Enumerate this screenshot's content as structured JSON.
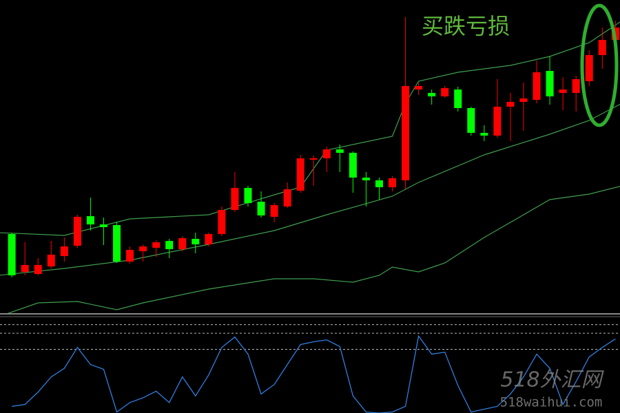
{
  "chart_data": {
    "type": "candlestick",
    "title": "买跌亏损",
    "watermark": "518外汇网",
    "watermark_url": "518waihui.com",
    "up_color": "#ff0000",
    "down_color": "#00ff00",
    "band_color": "#3f9f4f",
    "title_color": "#5fb83c",
    "xlim": [
      -0.9,
      46.35
    ],
    "ylim": [
      0,
      455
    ],
    "candles": {
      "open": [
        115,
        60,
        57,
        68,
        83,
        98,
        141,
        129,
        128,
        75,
        90,
        95,
        105,
        93,
        108,
        100,
        115,
        150,
        182,
        162,
        140,
        155,
        178,
        223,
        225,
        238,
        233,
        197,
        193,
        183,
        193,
        325,
        320,
        315,
        325,
        298,
        262,
        258,
        300,
        307,
        310,
        352,
        320,
        320,
        337,
        375,
        397
      ],
      "high": [
        117,
        103,
        80,
        105,
        110,
        143,
        168,
        139,
        133,
        97,
        100,
        106,
        108,
        112,
        117,
        117,
        155,
        205,
        185,
        177,
        160,
        190,
        230,
        229,
        242,
        245,
        235,
        205,
        197,
        199,
        430,
        335,
        325,
        330,
        329,
        300,
        273,
        340,
        320,
        335,
        367,
        373,
        343,
        345,
        382,
        415,
        425
      ],
      "low": [
        52,
        55,
        55,
        65,
        75,
        95,
        120,
        99,
        73,
        72,
        75,
        82,
        80,
        90,
        87,
        97,
        112,
        147,
        155,
        139,
        132,
        153,
        175,
        185,
        205,
        205,
        175,
        155,
        165,
        177,
        180,
        317,
        303,
        313,
        293,
        258,
        250,
        255,
        250,
        265,
        305,
        303,
        295,
        293,
        330,
        355,
        385
      ],
      "close": [
        55,
        70,
        70,
        85,
        97,
        140,
        129,
        125,
        75,
        92,
        97,
        103,
        93,
        109,
        100,
        115,
        150,
        182,
        160,
        142,
        157,
        180,
        225,
        225,
        238,
        233,
        197,
        193,
        183,
        196,
        330,
        330,
        315,
        327,
        298,
        262,
        258,
        300,
        307,
        312,
        350,
        315,
        325,
        340,
        375,
        397,
        415
      ]
    },
    "bands": [
      {
        "x": [
          -1,
          4,
          9,
          15,
          20,
          22,
          24,
          29,
          30,
          31,
          34,
          38,
          41,
          44,
          46.5
        ],
        "values": [
          117,
          113,
          137,
          143,
          172,
          183,
          237,
          257,
          305,
          337,
          350,
          360,
          373,
          393,
          425
        ]
      },
      {
        "x": [
          -1,
          4,
          9,
          15,
          20,
          24,
          29,
          31,
          36,
          41,
          44,
          46.5
        ],
        "values": [
          55,
          65,
          77,
          100,
          120,
          143,
          170,
          190,
          230,
          260,
          280,
          305
        ]
      },
      {
        "x": [
          -1,
          2,
          5,
          8,
          10,
          15,
          20,
          23,
          26,
          28,
          29,
          31,
          33,
          36,
          41,
          44,
          46.5
        ],
        "values": [
          -5,
          15,
          17,
          5,
          15,
          35,
          50,
          50,
          45,
          55,
          67,
          60,
          73,
          110,
          165,
          173,
          185
        ]
      }
    ],
    "oscillator": {
      "color": "#2f7fe0",
      "ylim": [
        0,
        100
      ],
      "levels": [
        93,
        84,
        67
      ],
      "values": [
        7,
        9,
        22,
        38,
        47,
        69,
        51,
        46,
        1,
        11,
        16,
        23,
        11,
        38,
        18,
        40,
        69,
        80,
        62,
        20,
        30,
        51,
        72,
        75,
        77,
        70,
        18,
        1,
        0,
        1,
        7,
        81,
        62,
        64,
        29,
        1,
        4,
        7,
        20,
        38,
        62,
        47,
        9,
        33,
        59,
        69,
        78
      ]
    }
  }
}
